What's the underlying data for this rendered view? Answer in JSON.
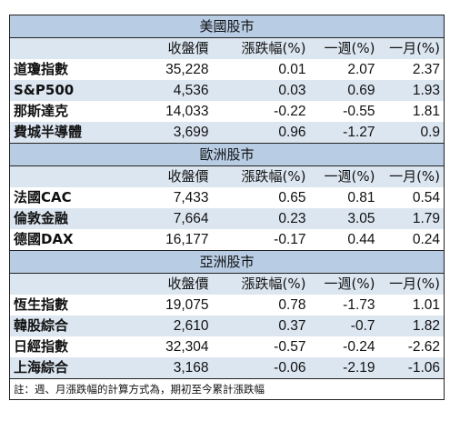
{
  "sections": [
    {
      "title": "美國股市",
      "columns": [
        "",
        "收盤價",
        "漲跌幅(%)",
        "一週(%)",
        "一月(%)"
      ],
      "rows": [
        {
          "name": "道瓊指數",
          "close": "35,228",
          "change": "0.01",
          "week": "2.07",
          "month": "2.37"
        },
        {
          "name": "S&P500",
          "close": "4,536",
          "change": "0.03",
          "week": "0.69",
          "month": "1.93"
        },
        {
          "name": "那斯達克",
          "close": "14,033",
          "change": "-0.22",
          "week": "-0.55",
          "month": "1.81"
        },
        {
          "name": "費城半導體",
          "close": "3,699",
          "change": "0.96",
          "week": "-1.27",
          "month": "0.9"
        }
      ]
    },
    {
      "title": "歐洲股市",
      "columns": [
        "",
        "收盤價",
        "漲跌幅(%)",
        "一週(%)",
        "一月(%)"
      ],
      "rows": [
        {
          "name": "法國CAC",
          "close": "7,433",
          "change": "0.65",
          "week": "0.81",
          "month": "0.54"
        },
        {
          "name": "倫敦金融",
          "close": "7,664",
          "change": "0.23",
          "week": "3.05",
          "month": "1.79"
        },
        {
          "name": "德國DAX",
          "close": "16,177",
          "change": "-0.17",
          "week": "0.44",
          "month": "0.24"
        }
      ]
    },
    {
      "title": "亞洲股市",
      "columns": [
        "",
        "收盤價",
        "漲跌幅(%)",
        "一週(%)",
        "一月(%)"
      ],
      "rows": [
        {
          "name": "恆生指數",
          "close": "19,075",
          "change": "0.78",
          "week": "-1.73",
          "month": "1.01"
        },
        {
          "name": "韓股綜合",
          "close": "2,610",
          "change": "0.37",
          "week": "-0.7",
          "month": "1.82"
        },
        {
          "name": "日經指數",
          "close": "32,304",
          "change": "-0.57",
          "week": "-0.24",
          "month": "-2.62"
        },
        {
          "name": "上海綜合",
          "close": "3,168",
          "change": "-0.06",
          "week": "-2.19",
          "month": "-1.06"
        }
      ]
    }
  ],
  "note": "註：週、月漲跌幅的計算方式為，期初至今累計漲跌幅",
  "colors": {
    "region_header": "#b8cce4",
    "stripe": "#dce6f1",
    "border": "#222222"
  }
}
